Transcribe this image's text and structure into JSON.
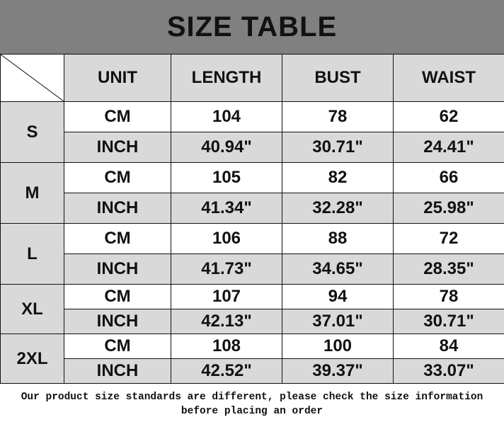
{
  "title": "SIZE TABLE",
  "headers": [
    "UNIT",
    "LENGTH",
    "BUST",
    "WAIST"
  ],
  "rows": [
    {
      "size": "S",
      "cm": {
        "unit": "CM",
        "length": "104",
        "bust": "78",
        "waist": "62"
      },
      "inch": {
        "unit": "INCH",
        "length": "40.94\"",
        "bust": "30.71\"",
        "waist": "24.41\""
      }
    },
    {
      "size": "M",
      "cm": {
        "unit": "CM",
        "length": "105",
        "bust": "82",
        "waist": "66"
      },
      "inch": {
        "unit": "INCH",
        "length": "41.34\"",
        "bust": "32.28\"",
        "waist": "25.98\""
      }
    },
    {
      "size": "L",
      "cm": {
        "unit": "CM",
        "length": "106",
        "bust": "88",
        "waist": "72"
      },
      "inch": {
        "unit": "INCH",
        "length": "41.73\"",
        "bust": "34.65\"",
        "waist": "28.35\""
      }
    },
    {
      "size": "XL",
      "cm": {
        "unit": "CM",
        "length": "107",
        "bust": "94",
        "waist": "78"
      },
      "inch": {
        "unit": "INCH",
        "length": "42.13\"",
        "bust": "37.01\"",
        "waist": "30.71\""
      }
    },
    {
      "size": "2XL",
      "cm": {
        "unit": "CM",
        "length": "108",
        "bust": "100",
        "waist": "84"
      },
      "inch": {
        "unit": "INCH",
        "length": "42.52\"",
        "bust": "39.37\"",
        "waist": "33.07\""
      }
    }
  ],
  "note": "Our product size standards are different, please check the size information before placing an order",
  "colors": {
    "title_bg": "#808080",
    "cell_gray": "#d9d9d9",
    "cell_white": "#ffffff"
  }
}
